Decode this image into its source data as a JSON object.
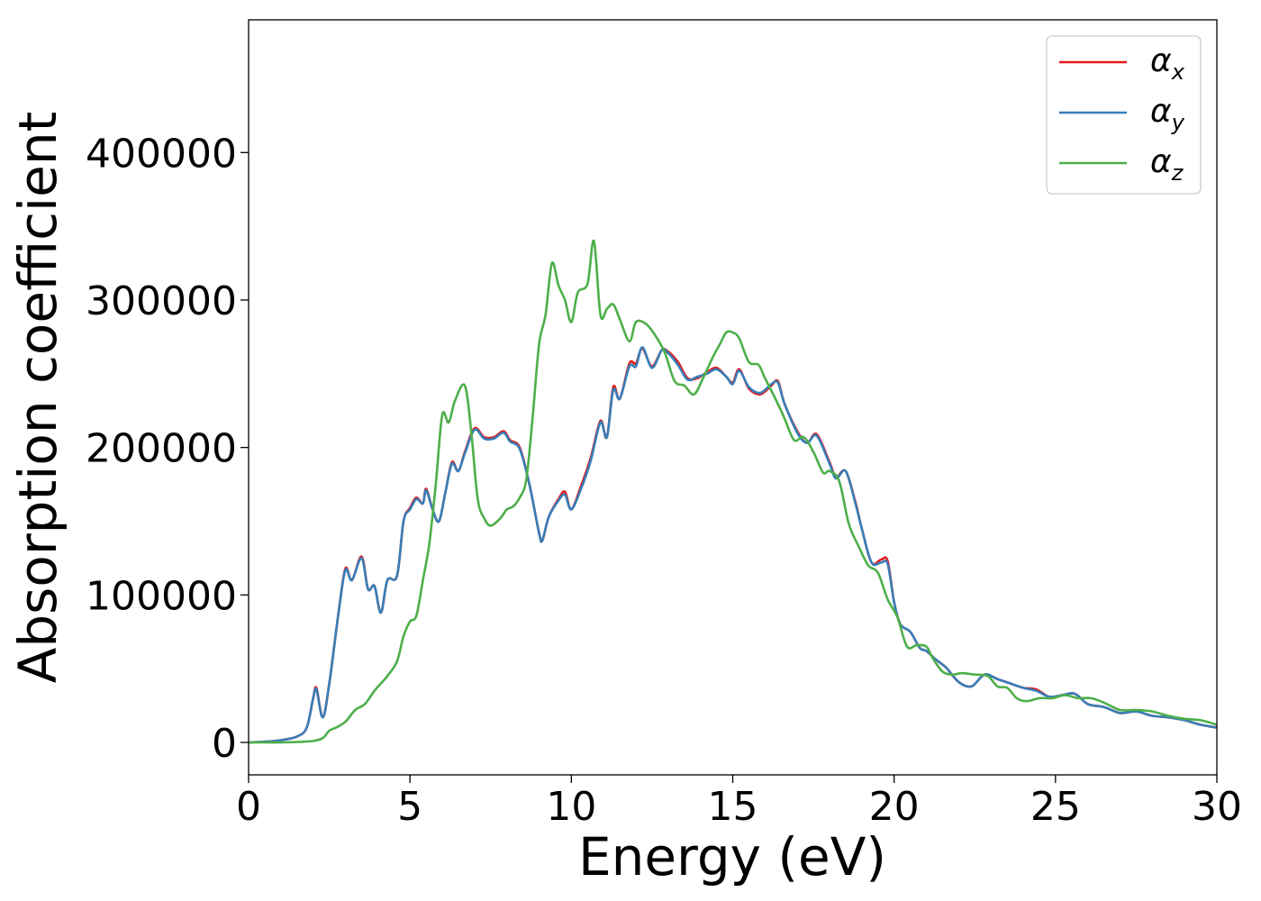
{
  "chart_data": {
    "type": "line",
    "title": "",
    "xlabel": "Energy (eV)",
    "ylabel": "Absorption coefficient",
    "xlim": [
      0,
      30
    ],
    "ylim": [
      -22000,
      490000
    ],
    "xticks": [
      0,
      5,
      10,
      15,
      20,
      25,
      30
    ],
    "yticks": [
      0,
      100000,
      200000,
      300000,
      400000
    ],
    "grid": false,
    "legend_position": "top-right",
    "series": [
      {
        "name": "α",
        "sub": "x",
        "color": "#e41a1c",
        "x": [
          0,
          0.5,
          1,
          1.5,
          1.8,
          2.0,
          2.1,
          2.3,
          2.5,
          2.8,
          3.0,
          3.2,
          3.5,
          3.7,
          3.9,
          4.1,
          4.3,
          4.6,
          4.8,
          5.0,
          5.2,
          5.4,
          5.5,
          5.7,
          5.9,
          6.1,
          6.3,
          6.5,
          6.7,
          7.0,
          7.3,
          7.6,
          7.9,
          8.1,
          8.4,
          8.7,
          9.0,
          9.1,
          9.3,
          9.6,
          9.8,
          10.0,
          10.3,
          10.6,
          10.9,
          11.1,
          11.3,
          11.5,
          11.8,
          12.0,
          12.2,
          12.5,
          12.8,
          13.0,
          13.3,
          13.6,
          13.9,
          14.2,
          14.5,
          14.8,
          15.0,
          15.2,
          15.5,
          15.8,
          16.0,
          16.2,
          16.4,
          16.6,
          17.0,
          17.3,
          17.6,
          18.0,
          18.2,
          18.5,
          18.8,
          19.0,
          19.3,
          19.6,
          19.8,
          20.0,
          20.2,
          20.5,
          20.8,
          21.0,
          21.3,
          21.6,
          22.0,
          22.4,
          22.8,
          23.2,
          23.6,
          24.0,
          24.4,
          24.8,
          25.2,
          25.6,
          26.0,
          26.5,
          27.0,
          27.5,
          28.0,
          28.5,
          29.0,
          29.5,
          30.0
        ],
        "y": [
          0,
          500,
          1500,
          4000,
          10000,
          30000,
          37000,
          17000,
          40000,
          90000,
          118000,
          110000,
          126000,
          104000,
          106000,
          88000,
          110000,
          113000,
          150000,
          159000,
          166000,
          162000,
          172000,
          158000,
          150000,
          170000,
          190000,
          184000,
          197000,
          213000,
          207000,
          207000,
          211000,
          205000,
          200000,
          175000,
          142000,
          137000,
          153000,
          165000,
          170000,
          158000,
          174000,
          193000,
          218000,
          207000,
          241000,
          233000,
          257000,
          257000,
          267000,
          255000,
          266000,
          265000,
          258000,
          247000,
          247000,
          251000,
          254000,
          248000,
          244000,
          253000,
          240000,
          236000,
          238000,
          242000,
          245000,
          230000,
          211000,
          203000,
          209000,
          190000,
          180000,
          184000,
          163000,
          145000,
          122000,
          124000,
          123000,
          95000,
          80000,
          75000,
          64000,
          62000,
          56000,
          51000,
          41000,
          38000,
          46000,
          43000,
          40000,
          37000,
          36000,
          31000,
          32000,
          33000,
          26000,
          24000,
          20000,
          21000,
          18000,
          17000,
          15000,
          12000,
          10000
        ]
      },
      {
        "name": "α",
        "sub": "y",
        "color": "#377eb8",
        "x": [
          0,
          0.5,
          1,
          1.5,
          1.8,
          2.0,
          2.1,
          2.3,
          2.5,
          2.8,
          3.0,
          3.2,
          3.5,
          3.7,
          3.9,
          4.1,
          4.3,
          4.6,
          4.8,
          5.0,
          5.2,
          5.4,
          5.5,
          5.7,
          5.9,
          6.1,
          6.3,
          6.5,
          6.7,
          7.0,
          7.3,
          7.6,
          7.9,
          8.1,
          8.4,
          8.7,
          9.0,
          9.1,
          9.3,
          9.6,
          9.8,
          10.0,
          10.3,
          10.6,
          10.9,
          11.1,
          11.3,
          11.5,
          11.8,
          12.0,
          12.2,
          12.5,
          12.8,
          13.0,
          13.3,
          13.6,
          13.9,
          14.2,
          14.5,
          14.8,
          15.0,
          15.2,
          15.5,
          15.8,
          16.0,
          16.2,
          16.4,
          16.6,
          17.0,
          17.3,
          17.6,
          18.0,
          18.2,
          18.5,
          18.8,
          19.0,
          19.3,
          19.6,
          19.8,
          20.0,
          20.2,
          20.5,
          20.8,
          21.0,
          21.3,
          21.6,
          22.0,
          22.4,
          22.8,
          23.2,
          23.6,
          24.0,
          24.4,
          24.8,
          25.2,
          25.6,
          26.0,
          26.5,
          27.0,
          27.5,
          28.0,
          28.5,
          29.0,
          29.5,
          30.0
        ],
        "y": [
          0,
          500,
          1500,
          4000,
          10000,
          30000,
          36000,
          17000,
          40000,
          90000,
          117000,
          110000,
          125000,
          104000,
          106000,
          88000,
          110000,
          113000,
          150000,
          158000,
          165000,
          162000,
          171000,
          158000,
          150000,
          170000,
          189000,
          184000,
          196000,
          212000,
          206000,
          206000,
          210000,
          204000,
          199000,
          175000,
          142000,
          137000,
          153000,
          164000,
          168000,
          158000,
          172000,
          191000,
          217000,
          207000,
          239000,
          233000,
          255000,
          255000,
          268000,
          254000,
          266000,
          264000,
          256000,
          246000,
          248000,
          250000,
          253000,
          248000,
          243000,
          252000,
          241000,
          237000,
          239000,
          243000,
          244000,
          230000,
          210000,
          203000,
          208000,
          189000,
          179000,
          184000,
          162000,
          145000,
          122000,
          122000,
          121000,
          95000,
          80000,
          75000,
          64000,
          62000,
          56000,
          51000,
          41000,
          38000,
          46000,
          43000,
          40000,
          37000,
          35000,
          31000,
          32000,
          33000,
          26000,
          24000,
          20000,
          21000,
          18000,
          17000,
          15000,
          12000,
          10000
        ]
      },
      {
        "name": "α",
        "sub": "z",
        "color": "#4daf4a",
        "x": [
          0,
          0.5,
          1,
          1.5,
          2.0,
          2.3,
          2.5,
          2.7,
          3.0,
          3.3,
          3.6,
          3.9,
          4.1,
          4.3,
          4.6,
          4.8,
          5.0,
          5.2,
          5.4,
          5.6,
          5.8,
          6.0,
          6.2,
          6.4,
          6.7,
          6.9,
          7.1,
          7.3,
          7.5,
          7.8,
          8.0,
          8.2,
          8.4,
          8.6,
          8.8,
          9.0,
          9.2,
          9.4,
          9.6,
          9.8,
          10.0,
          10.2,
          10.5,
          10.7,
          10.9,
          11.1,
          11.3,
          11.5,
          11.8,
          12.0,
          12.3,
          12.6,
          12.9,
          13.2,
          13.5,
          13.8,
          14.1,
          14.4,
          14.6,
          14.8,
          15.0,
          15.2,
          15.5,
          15.8,
          16.0,
          16.3,
          16.6,
          16.9,
          17.2,
          17.5,
          17.8,
          18.0,
          18.3,
          18.6,
          18.9,
          19.2,
          19.5,
          19.8,
          20.1,
          20.4,
          20.7,
          21.0,
          21.2,
          21.5,
          21.8,
          22.1,
          22.5,
          22.9,
          23.2,
          23.5,
          23.8,
          24.1,
          24.5,
          24.9,
          25.3,
          25.7,
          26.1,
          26.5,
          27.0,
          27.5,
          28.0,
          28.5,
          29.0,
          29.5,
          30.0
        ],
        "y": [
          0,
          0,
          0,
          300,
          1000,
          3000,
          8000,
          10000,
          14000,
          22000,
          26000,
          35000,
          40000,
          45000,
          55000,
          72000,
          82000,
          86000,
          110000,
          135000,
          175000,
          222000,
          217000,
          232000,
          242000,
          210000,
          165000,
          152000,
          147000,
          152000,
          158000,
          160000,
          166000,
          178000,
          220000,
          270000,
          290000,
          325000,
          310000,
          300000,
          285000,
          305000,
          311000,
          340000,
          290000,
          294000,
          297000,
          287000,
          272000,
          285000,
          284000,
          276000,
          264000,
          245000,
          242000,
          236000,
          248000,
          262000,
          270000,
          278000,
          278000,
          274000,
          258000,
          256000,
          247000,
          234000,
          220000,
          205000,
          207000,
          197000,
          183000,
          184000,
          177000,
          148000,
          133000,
          120000,
          115000,
          97000,
          85000,
          65000,
          66000,
          65000,
          57000,
          48000,
          46000,
          47000,
          46000,
          45000,
          38000,
          37000,
          30000,
          28000,
          30000,
          30000,
          32000,
          30000,
          30000,
          27000,
          22000,
          22000,
          21000,
          18000,
          16000,
          15000,
          12000
        ]
      }
    ]
  }
}
